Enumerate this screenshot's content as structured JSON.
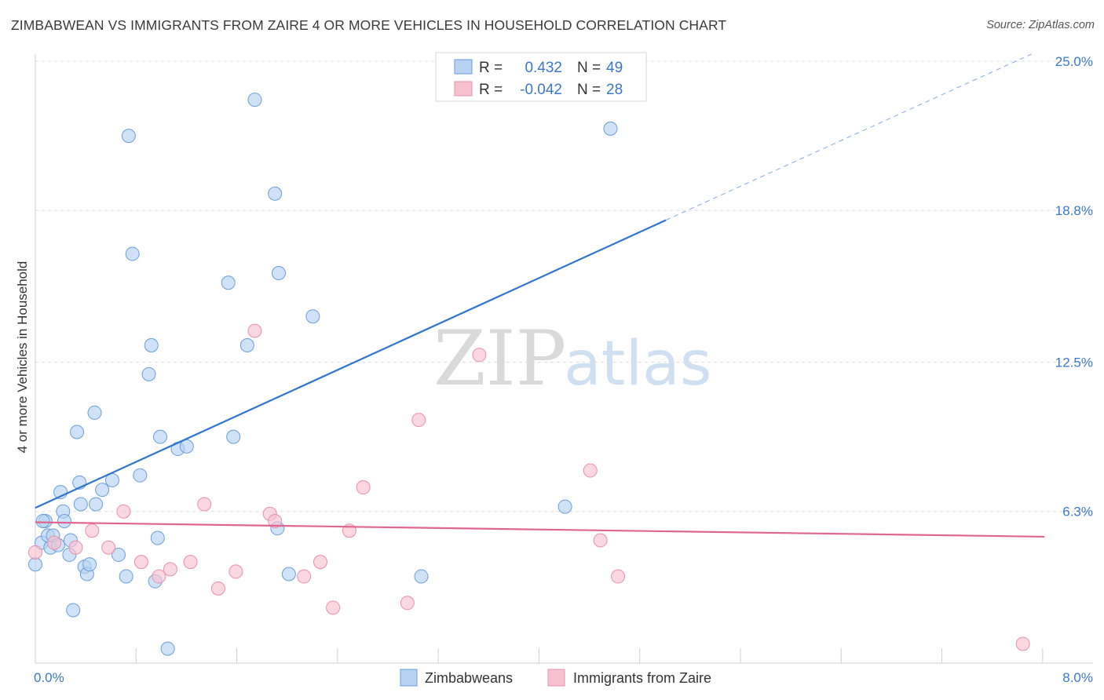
{
  "title": "ZIMBABWEAN VS IMMIGRANTS FROM ZAIRE 4 OR MORE VEHICLES IN HOUSEHOLD CORRELATION CHART",
  "source": "Source: ZipAtlas.com",
  "watermark": {
    "zip": "ZIP",
    "atlas": "atlas"
  },
  "legend": {
    "rows": [
      {
        "r_label": "R =",
        "r_value": "0.432",
        "n_label": "N =",
        "n_value": "49"
      },
      {
        "r_label": "R =",
        "r_value": "-0.042",
        "n_label": "N =",
        "n_value": "28"
      }
    ]
  },
  "colors": {
    "blue_fill": "#b7d2f2",
    "blue_stroke": "#6a9fdc",
    "blue_line": "#2f75cf",
    "pink_fill": "#f7c1d1",
    "pink_stroke": "#e990ae",
    "pink_line": "#e0668f",
    "tick_blue": "#3b78c9"
  },
  "chart_data": {
    "type": "scatter",
    "xlabel": "",
    "ylabel": "4 or more Vehicles in Household",
    "xlim": [
      0.0,
      8.0
    ],
    "ylim": [
      0.0,
      25.0
    ],
    "x_tick_labels": [
      "0.0%",
      "8.0%"
    ],
    "y_ticks": [
      6.3,
      12.5,
      18.8,
      25.0
    ],
    "y_tick_labels": [
      "6.3%",
      "12.5%",
      "18.8%",
      "25.0%"
    ],
    "grid": true,
    "legend_position": "bottom-center",
    "series": [
      {
        "name": "Zimbabweans",
        "points": [
          [
            0.0,
            4.1
          ],
          [
            0.05,
            5.0
          ],
          [
            0.08,
            5.9
          ],
          [
            0.1,
            5.3
          ],
          [
            0.12,
            4.8
          ],
          [
            0.14,
            5.3
          ],
          [
            0.18,
            4.9
          ],
          [
            0.2,
            7.1
          ],
          [
            0.22,
            6.3
          ],
          [
            0.23,
            5.9
          ],
          [
            0.27,
            4.5
          ],
          [
            0.28,
            5.1
          ],
          [
            0.3,
            2.2
          ],
          [
            0.33,
            9.6
          ],
          [
            0.35,
            7.5
          ],
          [
            0.36,
            6.6
          ],
          [
            0.39,
            4.0
          ],
          [
            0.41,
            3.7
          ],
          [
            0.43,
            4.1
          ],
          [
            0.47,
            10.4
          ],
          [
            0.48,
            6.6
          ],
          [
            0.53,
            7.2
          ],
          [
            0.61,
            7.6
          ],
          [
            0.66,
            4.5
          ],
          [
            0.72,
            3.6
          ],
          [
            0.74,
            21.9
          ],
          [
            0.77,
            17.0
          ],
          [
            0.83,
            7.8
          ],
          [
            0.9,
            12.0
          ],
          [
            0.92,
            13.2
          ],
          [
            0.95,
            3.4
          ],
          [
            0.97,
            5.2
          ],
          [
            0.99,
            9.4
          ],
          [
            1.05,
            0.6
          ],
          [
            1.13,
            8.9
          ],
          [
            1.2,
            9.0
          ],
          [
            1.53,
            15.8
          ],
          [
            1.57,
            9.4
          ],
          [
            1.68,
            13.2
          ],
          [
            1.74,
            23.4
          ],
          [
            1.9,
            19.5
          ],
          [
            1.92,
            5.6
          ],
          [
            1.93,
            16.2
          ],
          [
            2.01,
            3.7
          ],
          [
            2.2,
            14.4
          ],
          [
            3.06,
            3.6
          ],
          [
            4.2,
            6.5
          ],
          [
            4.56,
            22.2
          ],
          [
            0.06,
            5.9
          ]
        ]
      },
      {
        "name": "Immigrants from Zaire",
        "points": [
          [
            0.0,
            4.6
          ],
          [
            0.15,
            5.0
          ],
          [
            0.32,
            4.8
          ],
          [
            0.45,
            5.5
          ],
          [
            0.58,
            4.8
          ],
          [
            0.7,
            6.3
          ],
          [
            0.84,
            4.2
          ],
          [
            0.98,
            3.6
          ],
          [
            1.07,
            3.9
          ],
          [
            1.23,
            4.2
          ],
          [
            1.34,
            6.6
          ],
          [
            1.45,
            3.1
          ],
          [
            1.59,
            3.8
          ],
          [
            1.74,
            13.8
          ],
          [
            1.86,
            6.2
          ],
          [
            1.9,
            5.9
          ],
          [
            2.13,
            3.6
          ],
          [
            2.26,
            4.2
          ],
          [
            2.36,
            2.3
          ],
          [
            2.49,
            5.5
          ],
          [
            2.6,
            7.3
          ],
          [
            2.95,
            2.5
          ],
          [
            3.04,
            10.1
          ],
          [
            3.52,
            12.8
          ],
          [
            4.4,
            8.0
          ],
          [
            4.48,
            5.1
          ],
          [
            4.62,
            3.6
          ],
          [
            7.83,
            0.8
          ]
        ]
      }
    ],
    "trendlines": [
      {
        "series": "Zimbabweans",
        "x": [
          0.0,
          5.0
        ],
        "y": [
          6.45,
          18.4
        ],
        "extended_to": [
          7.9,
          25.3
        ]
      },
      {
        "series": "Immigrants from Zaire",
        "x": [
          0.0,
          8.0
        ],
        "y": [
          5.85,
          5.25
        ]
      }
    ]
  },
  "bottom_legend": [
    "Zimbabweans",
    "Immigrants from Zaire"
  ]
}
